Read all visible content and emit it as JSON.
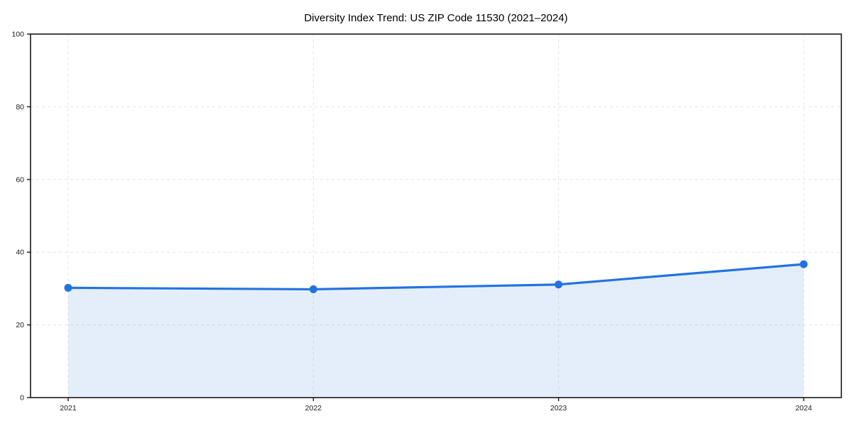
{
  "chart_data": {
    "type": "line",
    "title": "Diversity Index Trend: US ZIP Code 11530 (2021–2024)",
    "x": [
      "2021",
      "2022",
      "2023",
      "2024"
    ],
    "series": [
      {
        "name": "Diversity Index",
        "values": [
          30.2,
          29.8,
          31.1,
          36.7
        ]
      }
    ],
    "ylim": [
      0,
      100
    ],
    "yticks": [
      0,
      20,
      40,
      60,
      80,
      100
    ],
    "xlabel": "",
    "ylabel": "",
    "grid": "dashed",
    "legend": "none",
    "area_fill": true,
    "line_color": "#2273e2",
    "fill_opacity": 0.12,
    "marker": "circle"
  }
}
